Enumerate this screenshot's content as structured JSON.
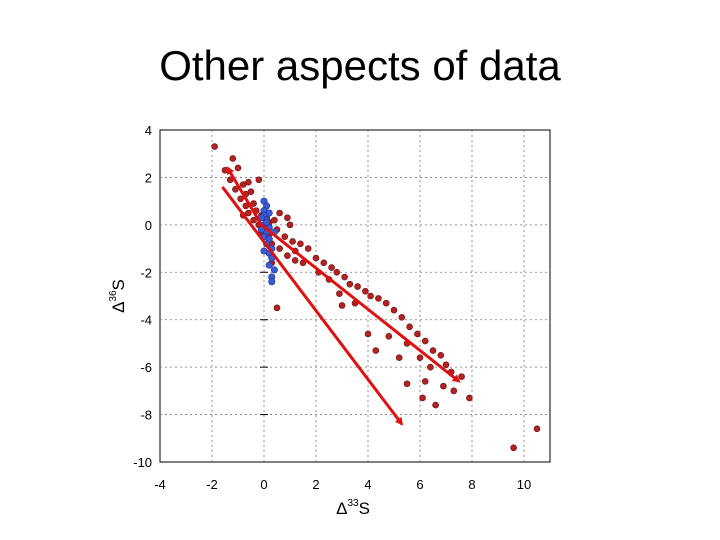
{
  "slide": {
    "title": "Other aspects of data"
  },
  "chart_data": {
    "type": "scatter",
    "xlabel": "Δ33S",
    "ylabel": "Δ36S",
    "xlim": [
      -4,
      11
    ],
    "ylim": [
      -10,
      4
    ],
    "x_ticks": [
      -4,
      -2,
      0,
      2,
      4,
      6,
      8,
      10
    ],
    "y_ticks": [
      4,
      2,
      0,
      -2,
      -4,
      -6,
      -8,
      -10
    ],
    "grid": "dotted",
    "colors": {
      "series_red": "#b22222",
      "series_blue": "#3a5bd9",
      "arrows": "#e01010"
    },
    "series": [
      {
        "color": "#b22222",
        "points": [
          [
            -1.9,
            3.3
          ],
          [
            -1.2,
            2.8
          ],
          [
            -1.0,
            2.4
          ],
          [
            -1.5,
            2.3
          ],
          [
            -0.8,
            1.7
          ],
          [
            -0.6,
            1.8
          ],
          [
            -1.1,
            1.5
          ],
          [
            -0.7,
            1.3
          ],
          [
            -0.5,
            1.4
          ],
          [
            -0.9,
            1.1
          ],
          [
            -0.4,
            0.9
          ],
          [
            -0.7,
            0.8
          ],
          [
            -0.3,
            0.6
          ],
          [
            -0.6,
            0.5
          ],
          [
            -0.1,
            0.4
          ],
          [
            -0.4,
            0.2
          ],
          [
            0.1,
            0.3
          ],
          [
            -0.2,
            0.0
          ],
          [
            0.2,
            0.1
          ],
          [
            0.4,
            0.2
          ],
          [
            0.9,
            0.3
          ],
          [
            1.0,
            0.0
          ],
          [
            -0.1,
            -0.3
          ],
          [
            0.2,
            -0.4
          ],
          [
            0.5,
            -0.2
          ],
          [
            0.8,
            -0.5
          ],
          [
            1.1,
            -0.7
          ],
          [
            1.4,
            -0.8
          ],
          [
            1.7,
            -1.0
          ],
          [
            0.3,
            -0.8
          ],
          [
            0.6,
            -1.0
          ],
          [
            0.9,
            -1.3
          ],
          [
            1.2,
            -1.5
          ],
          [
            1.5,
            -1.6
          ],
          [
            2.0,
            -1.4
          ],
          [
            2.3,
            -1.6
          ],
          [
            2.6,
            -1.8
          ],
          [
            2.8,
            -2.0
          ],
          [
            3.1,
            -2.2
          ],
          [
            2.5,
            -2.3
          ],
          [
            3.3,
            -2.5
          ],
          [
            3.6,
            -2.6
          ],
          [
            3.9,
            -2.8
          ],
          [
            4.1,
            -3.0
          ],
          [
            4.4,
            -3.1
          ],
          [
            3.5,
            -3.3
          ],
          [
            2.9,
            -2.9
          ],
          [
            0.5,
            -3.5
          ],
          [
            4.7,
            -3.3
          ],
          [
            5.0,
            -3.6
          ],
          [
            5.3,
            -3.9
          ],
          [
            5.6,
            -4.3
          ],
          [
            5.9,
            -4.6
          ],
          [
            5.5,
            -5.0
          ],
          [
            6.2,
            -4.9
          ],
          [
            6.5,
            -5.3
          ],
          [
            6.8,
            -5.5
          ],
          [
            7.0,
            -5.9
          ],
          [
            7.2,
            -6.2
          ],
          [
            6.0,
            -5.6
          ],
          [
            5.2,
            -5.6
          ],
          [
            6.4,
            -6.0
          ],
          [
            4.8,
            -4.7
          ],
          [
            6.2,
            -6.6
          ],
          [
            6.9,
            -6.8
          ],
          [
            7.3,
            -7.0
          ],
          [
            7.9,
            -7.3
          ],
          [
            6.1,
            -7.3
          ],
          [
            5.5,
            -6.7
          ],
          [
            4.3,
            -5.3
          ],
          [
            4.0,
            -4.6
          ],
          [
            6.6,
            -7.6
          ],
          [
            3.0,
            -3.4
          ],
          [
            1.2,
            -1.1
          ],
          [
            -0.2,
            1.9
          ],
          [
            -0.8,
            0.4
          ],
          [
            0.6,
            0.5
          ],
          [
            -1.3,
            1.9
          ],
          [
            9.6,
            -9.4
          ],
          [
            10.5,
            -8.6
          ],
          [
            7.6,
            -6.4
          ],
          [
            0.3,
            -1.6
          ],
          [
            2.1,
            -2.0
          ]
        ]
      },
      {
        "color": "#3a5bd9",
        "points": [
          [
            0.0,
            1.0
          ],
          [
            0.1,
            0.8
          ],
          [
            0.0,
            0.6
          ],
          [
            0.2,
            0.5
          ],
          [
            0.0,
            0.4
          ],
          [
            0.1,
            0.2
          ],
          [
            -0.1,
            0.3
          ],
          [
            0.0,
            0.0
          ],
          [
            0.2,
            -0.1
          ],
          [
            0.1,
            -0.3
          ],
          [
            0.0,
            -0.5
          ],
          [
            0.2,
            -0.6
          ],
          [
            0.1,
            -0.8
          ],
          [
            0.3,
            -1.0
          ],
          [
            0.2,
            -1.2
          ],
          [
            0.0,
            -1.1
          ],
          [
            0.3,
            -1.4
          ],
          [
            0.2,
            -1.7
          ],
          [
            0.4,
            -1.9
          ],
          [
            0.3,
            -2.2
          ],
          [
            0.3,
            -2.4
          ],
          [
            -0.1,
            -0.2
          ],
          [
            0.1,
            0.1
          ],
          [
            0.4,
            -0.3
          ]
        ]
      }
    ],
    "arrows": [
      {
        "from": [
          -0.1,
          0.0
        ],
        "to": [
          -1.4,
          2.4
        ]
      },
      {
        "from": [
          -0.1,
          0.0
        ],
        "to": [
          7.5,
          -6.6
        ]
      },
      {
        "from": [
          -1.6,
          1.6
        ],
        "to": [
          5.3,
          -8.4
        ]
      }
    ]
  }
}
